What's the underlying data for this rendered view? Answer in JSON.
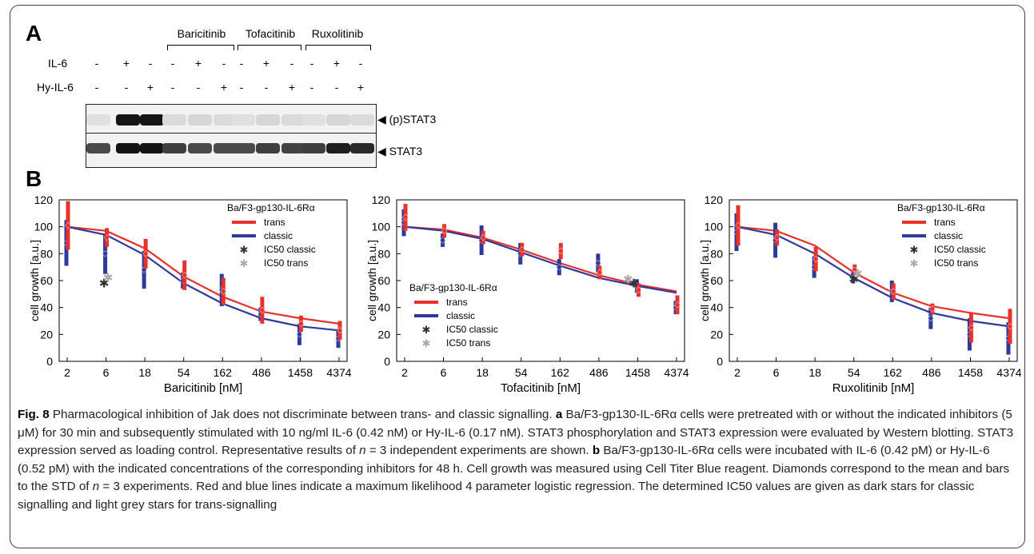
{
  "panelA": {
    "letter": "A",
    "rows": [
      {
        "label": "IL-6",
        "signs": [
          "-",
          "+",
          "-",
          "-",
          "+",
          "-",
          "-",
          "+",
          "-",
          "-",
          "+",
          "-"
        ]
      },
      {
        "label": "Hy-IL-6",
        "signs": [
          "-",
          "-",
          "+",
          "-",
          "-",
          "+",
          "-",
          "-",
          "+",
          "-",
          "-",
          "+"
        ]
      }
    ],
    "inhibitors": [
      "Baricitinib",
      "Tofacitinib",
      "Ruxolitinib"
    ],
    "blots": [
      "(p)STAT3",
      "STAT3"
    ],
    "pstat3_intensity": [
      0.05,
      1.0,
      1.0,
      0.08,
      0.1,
      0.08,
      0.05,
      0.1,
      0.08,
      0.05,
      0.1,
      0.08
    ],
    "stat3_intensity": [
      0.75,
      1.0,
      1.0,
      0.8,
      0.75,
      0.75,
      0.75,
      0.8,
      0.78,
      0.8,
      0.95,
      0.9
    ]
  },
  "panelB": {
    "letter": "B"
  },
  "chart_data": [
    {
      "type": "line",
      "xlabel": "Baricitinib [nM]",
      "ylabel": "cell growth [a.u.]",
      "x": [
        "2",
        "6",
        "18",
        "54",
        "162",
        "486",
        "1458",
        "4374"
      ],
      "ylim": [
        0,
        120
      ],
      "yticks": [
        "0",
        "20",
        "40",
        "60",
        "80",
        "100",
        "120"
      ],
      "legend_title": "Ba/F3-gp130-IL-6Rα",
      "legend_position": "top-right",
      "legend": [
        "trans",
        "classic",
        "IC50 classic",
        "IC50 trans"
      ],
      "colors": {
        "trans": "#e8312a",
        "classic": "#2e3a9b",
        "ic50_classic": "#333333",
        "ic50_trans": "#aaaaaa"
      },
      "series": [
        {
          "name": "trans",
          "values": [
            100,
            97,
            84,
            63,
            48,
            37,
            32,
            28
          ],
          "points": [
            101,
            92,
            80,
            64,
            52,
            38,
            28,
            23
          ],
          "err": [
            18,
            7,
            11,
            11,
            10,
            10,
            6,
            7
          ]
        },
        {
          "name": "classic",
          "values": [
            100,
            94,
            79,
            58,
            43,
            32,
            26,
            23
          ],
          "points": [
            88,
            80,
            68,
            60,
            53,
            35,
            20,
            17
          ],
          "err": [
            17,
            15,
            14,
            6,
            12,
            5,
            8,
            7
          ]
        }
      ],
      "ic50_classic": {
        "x": 0.95,
        "y": 58
      },
      "ic50_trans": {
        "x": 1.05,
        "y": 62
      }
    },
    {
      "type": "line",
      "xlabel": "Tofacitinib [nM]",
      "ylabel": "cell growth [a.u.]",
      "x": [
        "2",
        "6",
        "18",
        "54",
        "162",
        "486",
        "1458",
        "4374"
      ],
      "ylim": [
        0,
        120
      ],
      "yticks": [
        "0",
        "20",
        "40",
        "60",
        "80",
        "100",
        "120"
      ],
      "legend_title": "Ba/F3-gp130-IL-6Rα",
      "legend_position": "center-left",
      "legend": [
        "trans",
        "classic",
        "IC50 classic",
        "IC50 trans"
      ],
      "colors": {
        "trans": "#e8312a",
        "classic": "#2e3a9b",
        "ic50_classic": "#333333",
        "ic50_trans": "#aaaaaa"
      },
      "series": [
        {
          "name": "trans",
          "values": [
            100,
            98,
            92,
            83,
            73,
            64,
            57,
            52
          ],
          "points": [
            107,
            97,
            92,
            83,
            82,
            66,
            53,
            42
          ],
          "err": [
            10,
            5,
            5,
            5,
            6,
            5,
            5,
            7
          ]
        },
        {
          "name": "classic",
          "values": [
            100,
            97,
            91,
            81,
            71,
            62,
            56,
            51
          ],
          "points": [
            103,
            90,
            90,
            80,
            70,
            73,
            56,
            40
          ],
          "err": [
            10,
            5,
            11,
            8,
            6,
            7,
            5,
            5
          ]
        }
      ],
      "ic50_classic": {
        "x": 5.9,
        "y": 58
      },
      "ic50_trans": {
        "x": 5.75,
        "y": 61
      }
    },
    {
      "type": "line",
      "xlabel": "Ruxolitinib [nM]",
      "ylabel": "cell growth [a.u.]",
      "x": [
        "2",
        "6",
        "18",
        "54",
        "162",
        "486",
        "1458",
        "4374"
      ],
      "ylim": [
        0,
        120
      ],
      "yticks": [
        "0",
        "20",
        "40",
        "60",
        "80",
        "100",
        "120"
      ],
      "legend_title": "Ba/F3-gp130-IL-6Rα",
      "legend_position": "top-right",
      "legend": [
        "trans",
        "classic",
        "IC50 classic",
        "IC50 trans"
      ],
      "colors": {
        "trans": "#e8312a",
        "classic": "#2e3a9b",
        "ic50_classic": "#333333",
        "ic50_trans": "#aaaaaa"
      },
      "series": [
        {
          "name": "trans",
          "values": [
            100,
            97,
            86,
            66,
            51,
            41,
            36,
            32
          ],
          "points": [
            101,
            92,
            76,
            68,
            52,
            39,
            25,
            26
          ],
          "err": [
            15,
            6,
            9,
            4,
            6,
            4,
            11,
            13
          ]
        },
        {
          "name": "classic",
          "values": [
            100,
            94,
            80,
            62,
            47,
            36,
            30,
            26
          ],
          "points": [
            96,
            90,
            70,
            62,
            52,
            32,
            20,
            17
          ],
          "err": [
            14,
            13,
            8,
            4,
            8,
            8,
            12,
            12
          ]
        }
      ],
      "ic50_classic": {
        "x": 3.0,
        "y": 61
      },
      "ic50_trans": {
        "x": 3.1,
        "y": 65
      }
    }
  ],
  "caption": {
    "fig": "Fig. 8",
    "title": " Pharmacological inhibition of Jak does not discriminate between trans- and classic signalling. ",
    "a": "a",
    "a_text1": " Ba/F3-gp130-IL-6Rα cells were pretreated with or without the indicated inhibitors (5 μM) for 30 min and subsequently stimulated with 10 ng/ml IL-6 (0.42 nM) or Hy-IL-6 (0.17 nM). STAT3 phosphorylation and STAT3 expression were evaluated by Western blotting. STAT3 expression served as loading control. Representative results of ",
    "n": "n",
    "a_text2": " = 3 independent experiments are shown. ",
    "b": "b",
    "b_text1": " Ba/F3-gp130-IL-6Rα cells were incubated with IL-6 (0.42 pM) or Hy-IL-6 (0.52 pM) with the indicated concentrations of the corresponding inhibitors for 48 h. Cell growth was measured using Cell Titer Blue reagent. Diamonds correspond to the mean and bars to the STD of ",
    "b_text2": " = 3 experiments. Red and blue lines indicate a maximum likelihood 4 parameter logistic regression. The determined IC50 values are given as dark stars for classic signalling and light grey stars for trans-signalling"
  }
}
